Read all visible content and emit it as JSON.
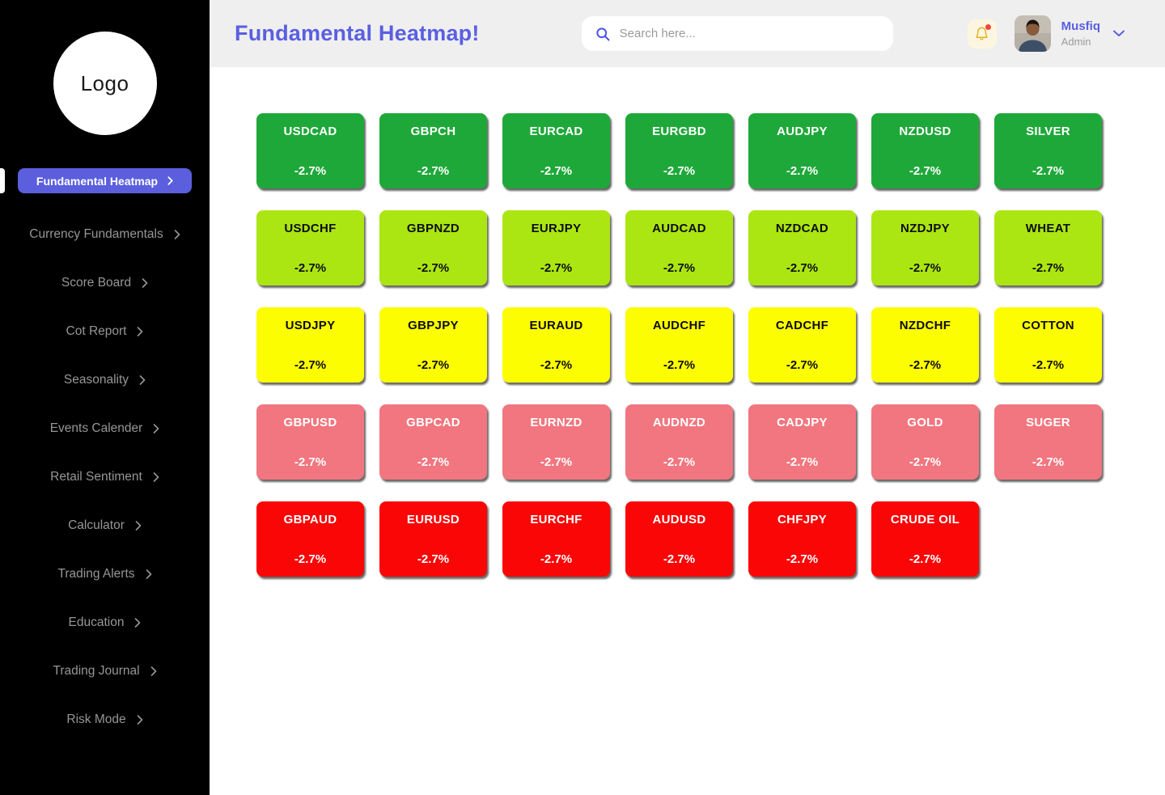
{
  "sidebar": {
    "logo_text": "Logo",
    "active_item": {
      "label": "Fundamental Heatmap"
    },
    "items": [
      {
        "label": "Currency Fundamentals"
      },
      {
        "label": "Score Board"
      },
      {
        "label": "Cot Report"
      },
      {
        "label": "Seasonality"
      },
      {
        "label": "Events Calender"
      },
      {
        "label": "Retail Sentiment"
      },
      {
        "label": "Calculator"
      },
      {
        "label": "Trading Alerts"
      },
      {
        "label": "Education"
      },
      {
        "label": "Trading Journal"
      },
      {
        "label": "Risk Mode"
      }
    ]
  },
  "header": {
    "title": "Fundamental Heatmap!",
    "search_placeholder": "Search here...",
    "notification_dot": true,
    "user": {
      "name": "Musfiq",
      "role": "Admin"
    }
  },
  "heatmap": {
    "rows": [
      {
        "band": "strong-positive",
        "color": "#1fa83a",
        "text_color": "#ffffff",
        "tiles": [
          {
            "symbol": "USDCAD",
            "value": "-2.7%"
          },
          {
            "symbol": "GBPCH",
            "value": "-2.7%"
          },
          {
            "symbol": "EURCAD",
            "value": "-2.7%"
          },
          {
            "symbol": "EURGBD",
            "value": "-2.7%"
          },
          {
            "symbol": "AUDJPY",
            "value": "-2.7%"
          },
          {
            "symbol": "NZDUSD",
            "value": "-2.7%"
          },
          {
            "symbol": "SILVER",
            "value": "-2.7%"
          }
        ]
      },
      {
        "band": "positive",
        "color": "#abe612",
        "text_color": "#0d0d0d",
        "tiles": [
          {
            "symbol": "USDCHF",
            "value": "-2.7%"
          },
          {
            "symbol": "GBPNZD",
            "value": "-2.7%"
          },
          {
            "symbol": "EURJPY",
            "value": "-2.7%"
          },
          {
            "symbol": "AUDCAD",
            "value": "-2.7%"
          },
          {
            "symbol": "NZDCAD",
            "value": "-2.7%"
          },
          {
            "symbol": "NZDJPY",
            "value": "-2.7%"
          },
          {
            "symbol": "WHEAT",
            "value": "-2.7%"
          }
        ]
      },
      {
        "band": "neutral",
        "color": "#fdfd02",
        "text_color": "#0d0d0d",
        "tiles": [
          {
            "symbol": "USDJPY",
            "value": "-2.7%"
          },
          {
            "symbol": "GBPJPY",
            "value": "-2.7%"
          },
          {
            "symbol": "EURAUD",
            "value": "-2.7%"
          },
          {
            "symbol": "AUDCHF",
            "value": "-2.7%"
          },
          {
            "symbol": "CADCHF",
            "value": "-2.7%"
          },
          {
            "symbol": "NZDCHF",
            "value": "-2.7%"
          },
          {
            "symbol": "COTTON",
            "value": "-2.7%"
          }
        ]
      },
      {
        "band": "negative",
        "color": "#f1767f",
        "text_color": "#ffffff",
        "tiles": [
          {
            "symbol": "GBPUSD",
            "value": "-2.7%"
          },
          {
            "symbol": "GBPCAD",
            "value": "-2.7%"
          },
          {
            "symbol": "EURNZD",
            "value": "-2.7%"
          },
          {
            "symbol": "AUDNZD",
            "value": "-2.7%"
          },
          {
            "symbol": "CADJPY",
            "value": "-2.7%"
          },
          {
            "symbol": "GOLD",
            "value": "-2.7%"
          },
          {
            "symbol": "SUGER",
            "value": "-2.7%"
          }
        ]
      },
      {
        "band": "strong-negative",
        "color": "#fb0606",
        "text_color": "#ffffff",
        "tiles": [
          {
            "symbol": "GBPAUD",
            "value": "-2.7%"
          },
          {
            "symbol": "EURUSD",
            "value": "-2.7%"
          },
          {
            "symbol": "EURCHF",
            "value": "-2.7%"
          },
          {
            "symbol": "AUDUSD",
            "value": "-2.7%"
          },
          {
            "symbol": "CHFJPY",
            "value": "-2.7%"
          },
          {
            "symbol": "CRUDE OIL",
            "value": "-2.7%"
          }
        ]
      }
    ]
  },
  "colors": {
    "accent_purple": "#5a5fe0",
    "sidebar_bg": "#000000",
    "sidebar_text": "#969696",
    "active_button_bg": "#5b5fdd",
    "header_bg": "#efefef",
    "bell_bg": "#fcf6e1",
    "bell_icon": "#dfb31c",
    "notification_dot": "#f2453d"
  }
}
